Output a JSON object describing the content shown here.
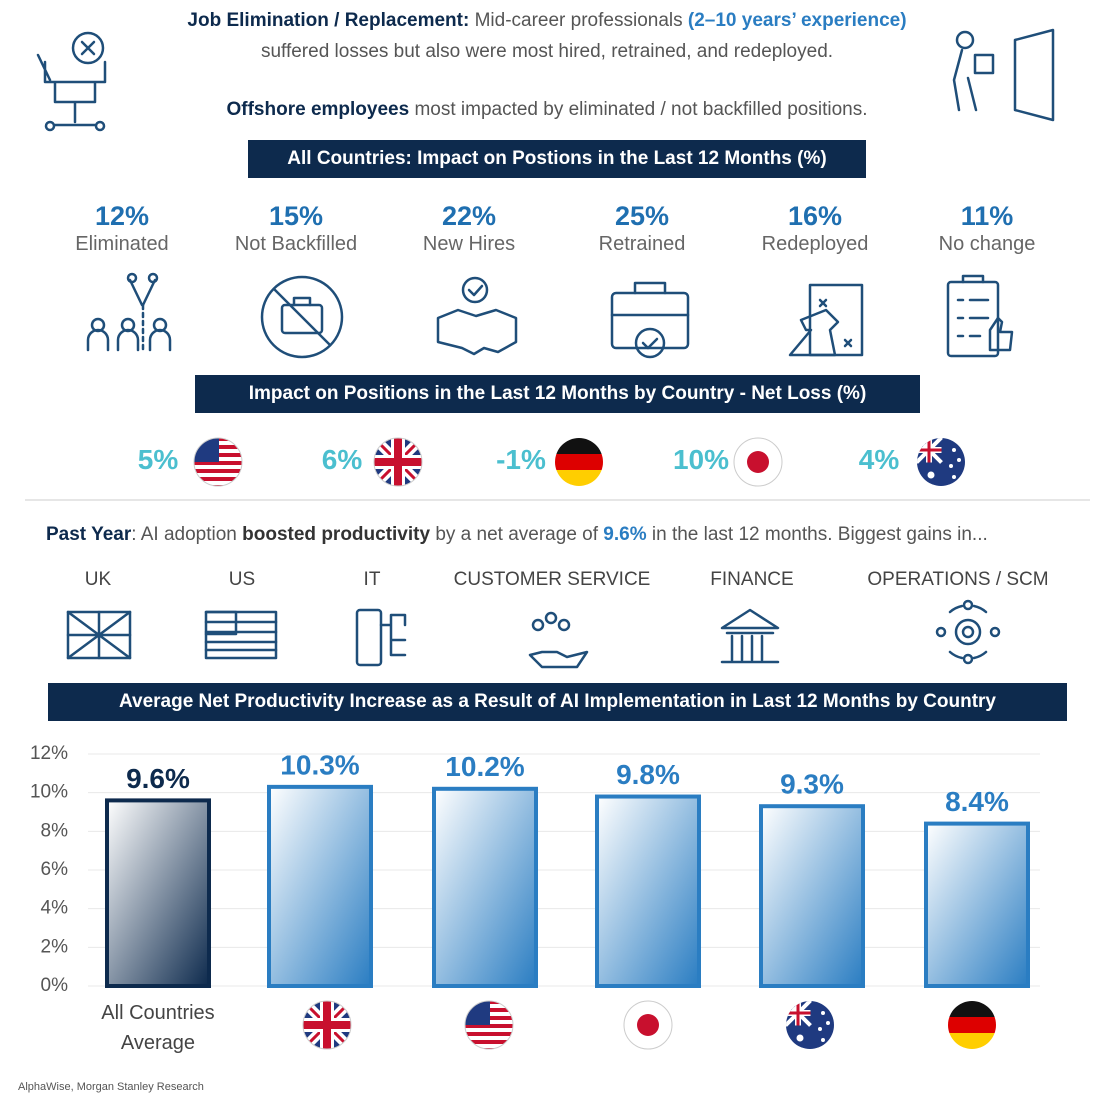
{
  "header": {
    "line1_bold": "Job Elimination / Replacement:",
    "line1_text": " Mid-career professionals ",
    "line1_highlight": "(2–10 years’ experience)",
    "line2": "suffered losses but also were most hired, retrained, and redeployed.",
    "line3_bold": "Offshore employees",
    "line3_text": " most impacted by eliminated / not backfilled positions."
  },
  "impact": {
    "title": "All Countries: Impact on Postions in the Last 12 Months (%)",
    "items": [
      {
        "value": "12%",
        "label": "Eliminated"
      },
      {
        "value": "15%",
        "label": "Not Backfilled"
      },
      {
        "value": "22%",
        "label": "New Hires"
      },
      {
        "value": "25%",
        "label": "Retrained"
      },
      {
        "value": "16%",
        "label": "Redeployed"
      },
      {
        "value": "11%",
        "label": "No change"
      }
    ]
  },
  "net_loss": {
    "title": "Impact on Positions in the Last 12 Months by Country - Net Loss (%)",
    "values": [
      "5%",
      "6%",
      "-1%",
      "10%",
      "4%"
    ]
  },
  "productivity": {
    "lead": "Past Year",
    "text1": ": AI adoption ",
    "bold": "boosted productivity",
    "text2": " by a net average of ",
    "highlight": "9.6%",
    "text3": " in the last 12 months. Biggest gains in...",
    "areas": [
      "UK",
      "US",
      "IT",
      "CUSTOMER SERVICE",
      "FINANCE",
      "OPERATIONS / SCM"
    ]
  },
  "chart_data": {
    "type": "bar",
    "title": "Average Net Productivity Increase as a Result of AI Implementation in Last 12 Months by Country",
    "categories": [
      "All Countries Average",
      null,
      null,
      null,
      null,
      null
    ],
    "values": [
      9.6,
      10.3,
      10.2,
      9.8,
      9.3,
      8.4
    ],
    "value_labels": [
      "9.6%",
      "10.3%",
      "10.2%",
      "9.8%",
      "9.3%",
      "8.4%"
    ],
    "colors": [
      "#0d2a4d",
      "#2a7dc2",
      "#2a7dc2",
      "#2a7dc2",
      "#2a7dc2",
      "#2a7dc2"
    ],
    "ylim": [
      0,
      12
    ],
    "yticks": [
      {
        "value": 0,
        "label": "0%"
      },
      {
        "value": 2,
        "label": "2%"
      },
      {
        "value": 4,
        "label": "4%"
      },
      {
        "value": 6,
        "label": "6%"
      },
      {
        "value": 8,
        "label": "8%"
      },
      {
        "value": 10,
        "label": "10%"
      },
      {
        "value": 12,
        "label": "12%"
      }
    ],
    "grid": true
  },
  "source": "AlphaWise, Morgan Stanley Research"
}
